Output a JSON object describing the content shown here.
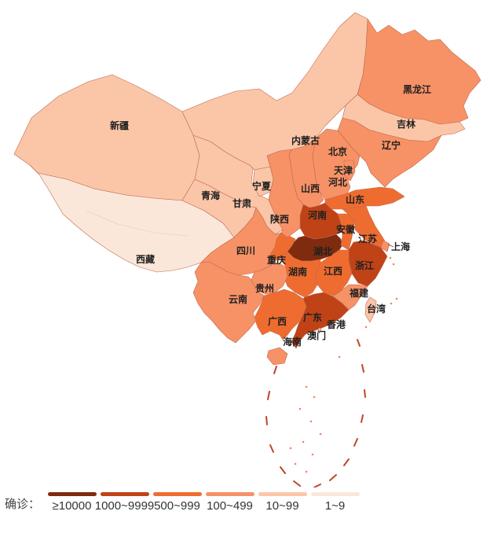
{
  "legend": {
    "label": "确诊：",
    "buckets": [
      {
        "range": "≥10000",
        "color": "#7e2b10"
      },
      {
        "range": "1000~9999",
        "color": "#bf4317"
      },
      {
        "range": "500~999",
        "color": "#ef6c30"
      },
      {
        "range": "100~499",
        "color": "#f79267"
      },
      {
        "range": "10~99",
        "color": "#fbc6a8"
      },
      {
        "range": "1~9",
        "color": "#fbe7da"
      }
    ]
  },
  "map": {
    "border_color": "#bf6950",
    "dash_line_color": "#c0452a",
    "island_color": "#e98a68",
    "label_color": "#1f1f1f",
    "inner_line_color": "#ecc4b0"
  },
  "chart_data": {
    "type": "heatmap",
    "title": "",
    "legend_title": "确诊：",
    "buckets": [
      "≥10000",
      "1000~9999",
      "500~999",
      "100~499",
      "10~99",
      "1~9"
    ],
    "regions": [
      {
        "id": "hubei",
        "name": "湖北",
        "range": "≥10000"
      },
      {
        "id": "guangdong",
        "name": "广东",
        "range": "1000~9999"
      },
      {
        "id": "zhejiang",
        "name": "浙江",
        "range": "1000~9999"
      },
      {
        "id": "henan",
        "name": "河南",
        "range": "1000~9999"
      },
      {
        "id": "hunan",
        "name": "湖南",
        "range": "500~999"
      },
      {
        "id": "anhui",
        "name": "安徽",
        "range": "500~999"
      },
      {
        "id": "jiangxi",
        "name": "江西",
        "range": "500~999"
      },
      {
        "id": "jiangsu",
        "name": "江苏",
        "range": "500~999"
      },
      {
        "id": "chongqing",
        "name": "重庆",
        "range": "500~999"
      },
      {
        "id": "shandong",
        "name": "山东",
        "range": "500~999"
      },
      {
        "id": "guangxi",
        "name": "广西",
        "range": "500~999"
      },
      {
        "id": "sichuan",
        "name": "四川",
        "range": "100~499"
      },
      {
        "id": "heilongjiang",
        "name": "黑龙江",
        "range": "100~499"
      },
      {
        "id": "beijing",
        "name": "北京",
        "range": "100~499"
      },
      {
        "id": "shanghai",
        "name": "上海",
        "range": "100~499"
      },
      {
        "id": "hebei",
        "name": "河北",
        "range": "100~499"
      },
      {
        "id": "fujian",
        "name": "福建",
        "range": "100~499"
      },
      {
        "id": "shaanxi",
        "name": "陕西",
        "range": "100~499"
      },
      {
        "id": "yunnan",
        "name": "云南",
        "range": "100~499"
      },
      {
        "id": "hainan",
        "name": "海南",
        "range": "100~499"
      },
      {
        "id": "guizhou",
        "name": "贵州",
        "range": "100~499"
      },
      {
        "id": "tianjin",
        "name": "天津",
        "range": "100~499"
      },
      {
        "id": "shanxi",
        "name": "山西",
        "range": "100~499"
      },
      {
        "id": "liaoning",
        "name": "辽宁",
        "range": "100~499"
      },
      {
        "id": "jilin",
        "name": "吉林",
        "range": "10~99"
      },
      {
        "id": "gansu",
        "name": "甘肃",
        "range": "10~99"
      },
      {
        "id": "xinjiang",
        "name": "新疆",
        "range": "10~99"
      },
      {
        "id": "ningxia",
        "name": "宁夏",
        "range": "10~99"
      },
      {
        "id": "neimenggu",
        "name": "内蒙古",
        "range": "10~99"
      },
      {
        "id": "qinghai",
        "name": "青海",
        "range": "10~99"
      },
      {
        "id": "taiwan",
        "name": "台湾",
        "range": "10~99"
      },
      {
        "id": "hongkong",
        "name": "香港",
        "range": "10~99"
      },
      {
        "id": "macau",
        "name": "澳门",
        "range": "10~99"
      },
      {
        "id": "xizang",
        "name": "西藏",
        "range": "1~9"
      }
    ]
  }
}
